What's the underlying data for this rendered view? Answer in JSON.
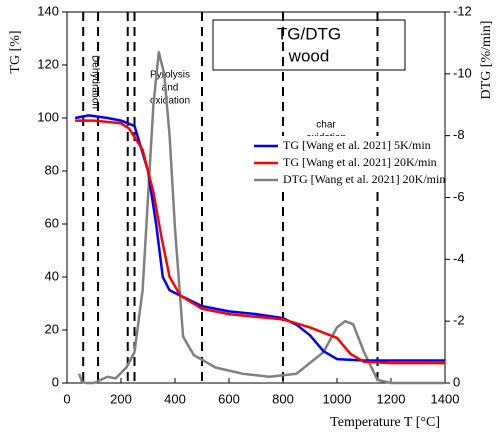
{
  "chart_data": {
    "type": "line",
    "title": "TG/DTG",
    "subtitle": "wood",
    "x_label": "Temperature T [°C]",
    "y_label": "TG  [%]",
    "y2_label": "DTG [%/min]",
    "xlim": [
      0,
      1400
    ],
    "xticks": [
      0,
      200,
      400,
      600,
      800,
      1000,
      1200,
      1400
    ],
    "ylim": [
      0,
      140
    ],
    "yticks": [
      0,
      20,
      40,
      60,
      80,
      100,
      120,
      140
    ],
    "y2lim": [
      0,
      -12
    ],
    "y2ticks": [
      0,
      -2,
      -4,
      -6,
      -8,
      -10,
      -12
    ],
    "vlines": [
      60,
      115,
      225,
      250,
      500,
      800,
      1150
    ],
    "annotations": [
      [
        "Dehydration"
      ],
      [
        "Pyrolysis",
        "and",
        "oxidation"
      ],
      [
        "char",
        "oxidation"
      ]
    ],
    "legend": "upper right",
    "series": [
      {
        "name": "TG [Wang et al. 2021] 5K/min",
        "color": "#0000ff",
        "x": [
          30,
          80,
          150,
          200,
          250,
          300,
          330,
          355,
          380,
          420,
          500,
          600,
          700,
          800,
          850,
          900,
          950,
          1000,
          1100,
          1200,
          1300,
          1400
        ],
        "values": [
          100,
          101,
          100,
          99,
          97,
          80,
          60,
          40,
          35,
          33,
          29,
          27,
          26,
          24.5,
          22,
          18,
          12,
          9,
          8.5,
          8.5,
          8.5,
          8.5
        ]
      },
      {
        "name": "TG [Wang et al. 2021] 20K/min",
        "color": "#ff0000",
        "x": [
          30,
          100,
          200,
          230,
          280,
          320,
          350,
          380,
          420,
          500,
          600,
          700,
          800,
          900,
          1000,
          1050,
          1100,
          1200,
          1400
        ],
        "values": [
          99,
          99,
          98,
          96,
          88,
          72,
          55,
          40,
          33,
          28,
          26,
          25,
          24,
          21,
          17,
          11,
          8,
          7.5,
          7.5
        ]
      },
      {
        "name": "DTG [Wang et al. 2021] 20K/min",
        "color": "#808080",
        "axis": "y2",
        "x": [
          45,
          55,
          70,
          100,
          150,
          180,
          220,
          250,
          280,
          300,
          320,
          340,
          360,
          380,
          400,
          430,
          470,
          550,
          650,
          750,
          850,
          950,
          1000,
          1030,
          1060,
          1100,
          1150,
          1200,
          1400
        ],
        "values": [
          -0.3,
          -0.05,
          0,
          0,
          -0.2,
          -0.15,
          -0.5,
          -1,
          -3,
          -6,
          -9,
          -10.7,
          -10,
          -8,
          -5,
          -1.5,
          -0.9,
          -0.5,
          -0.3,
          -0.2,
          -0.3,
          -1,
          -1.8,
          -2,
          -1.9,
          -1,
          -0.1,
          0,
          0
        ]
      }
    ]
  }
}
